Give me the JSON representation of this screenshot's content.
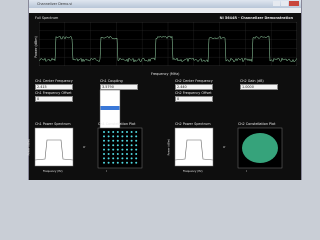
{
  "window": {
    "title": "Channelizer Demo.vi"
  },
  "header": {
    "title": "NI 5644R - Channelizer Demonstration"
  },
  "full_spectrum": {
    "title": "Full Spectrum",
    "y_label": "Power (dBm)",
    "x_label": "Frequency (MHz)"
  },
  "controls": [
    {
      "label": "Ch1 Center Frequency",
      "value": "2.415"
    },
    {
      "label": "Ch1 Coupling",
      "value": "3.5790"
    },
    {
      "label": "Ch2 Center Frequency",
      "value": "2.440"
    },
    {
      "label": "Ch2 Gain (dB)",
      "value": "1.0000"
    },
    {
      "label": "Ch1 Frequency Offset",
      "value": "0"
    },
    {
      "label": "Ch2 Frequency Offset",
      "value": "0"
    }
  ],
  "panels": [
    {
      "title": "Ch1 Power Spectrum",
      "y_label": "Power (dBm)",
      "x_label": "Frequency (Hz)"
    },
    {
      "title": "Ch1 Constellation Plot",
      "y_label": "Q",
      "x_label": "I"
    },
    {
      "title": "Ch2 Power Spectrum",
      "y_label": "Power (dBm)",
      "x_label": "Frequency (Hz)"
    },
    {
      "title": "Ch2 Constellation Plot",
      "y_label": "Q",
      "x_label": "I"
    }
  ]
}
